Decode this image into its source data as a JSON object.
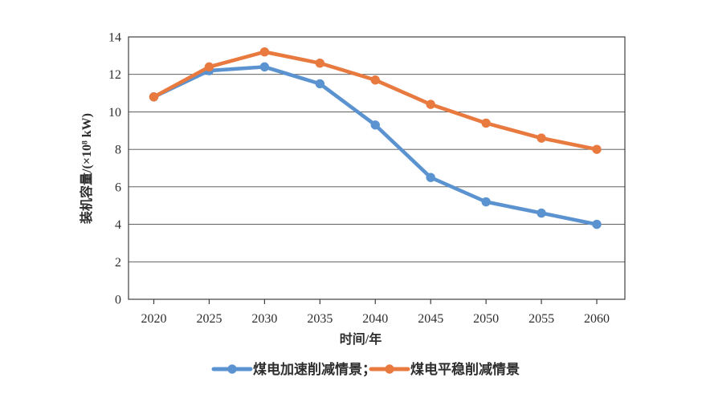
{
  "chart_data": {
    "type": "line",
    "title": "",
    "xlabel": "时间/年",
    "ylabel": "装机容量/(×10⁸ kW)",
    "categories": [
      "2020",
      "2025",
      "2030",
      "2035",
      "2040",
      "2045",
      "2050",
      "2055",
      "2060"
    ],
    "series": [
      {
        "name": "煤电加速削减情景",
        "legend_label": "煤电加速削减情景；",
        "color": "#5b93d0",
        "values": [
          10.8,
          12.2,
          12.4,
          11.5,
          9.3,
          6.5,
          5.2,
          4.6,
          4.0
        ]
      },
      {
        "name": "煤电平稳削减情景",
        "legend_label": "煤电平稳削减情景",
        "color": "#e87a40",
        "values": [
          10.8,
          12.4,
          13.2,
          12.6,
          11.7,
          10.4,
          9.4,
          8.6,
          8.0
        ]
      }
    ],
    "ylim": [
      0,
      14
    ],
    "ytick_step": 2,
    "grid": "horizontal",
    "legend_position": "bottom",
    "marker": "circle",
    "background_color": "#ffffff",
    "axis_color": "#3f3f3f"
  }
}
